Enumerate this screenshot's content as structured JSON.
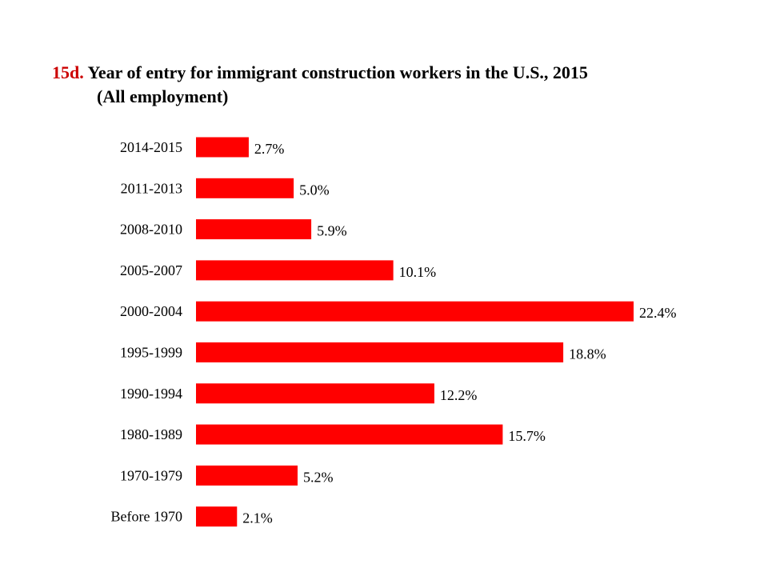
{
  "title": {
    "number": "15d.",
    "line1": "Year of entry for immigrant construction workers in the U.S., 2015",
    "line2": "(All employment)"
  },
  "colors": {
    "bar": "#ff0000",
    "title_number": "#cc0000"
  },
  "chart_data": {
    "type": "bar",
    "orientation": "horizontal",
    "categories": [
      "2014-2015",
      "2011-2013",
      "2008-2010",
      "2005-2007",
      "2000-2004",
      "1995-1999",
      "1990-1994",
      "1980-1989",
      "1970-1979",
      "Before 1970"
    ],
    "values": [
      2.7,
      5.0,
      5.9,
      10.1,
      22.4,
      18.8,
      12.2,
      15.7,
      5.2,
      2.1
    ],
    "value_labels": [
      "2.7%",
      "5.0%",
      "5.9%",
      "10.1%",
      "22.4%",
      "18.8%",
      "12.2%",
      "15.7%",
      "5.2%",
      "2.1%"
    ],
    "title": "Year of entry for immigrant construction workers in the U.S., 2015 (All employment)",
    "xlabel": "",
    "ylabel": "",
    "xlim": [
      0,
      22.4
    ],
    "grid": false,
    "legend": "none"
  }
}
